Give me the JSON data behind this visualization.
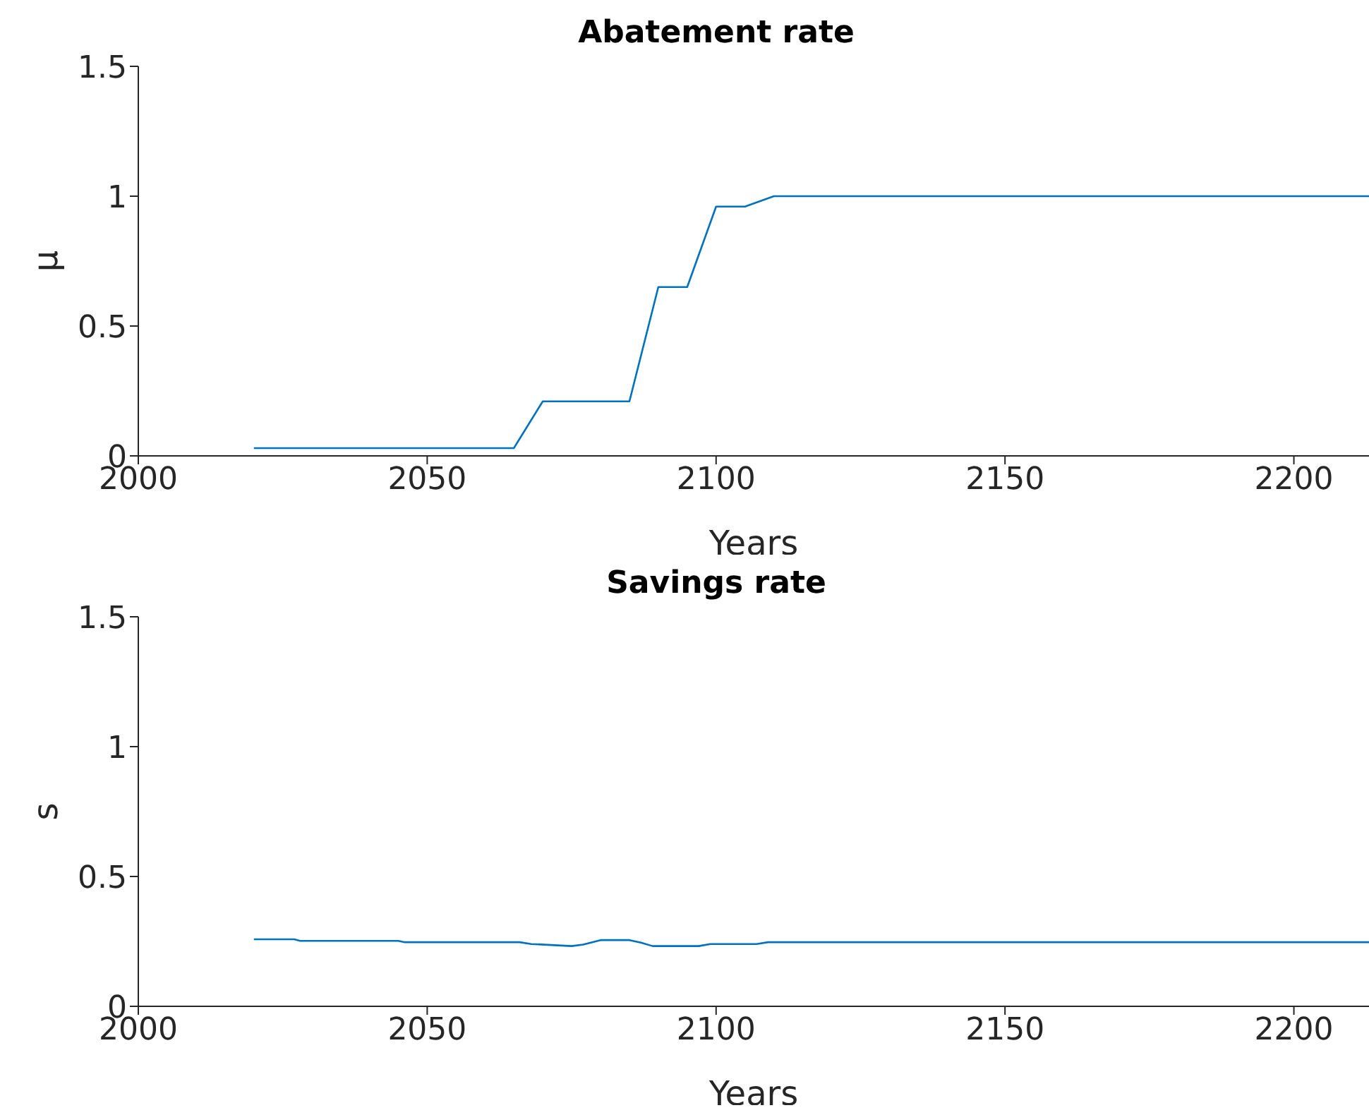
{
  "chart_data": [
    {
      "type": "line",
      "title": "Abatement rate",
      "xlabel": "Years",
      "ylabel": "μ",
      "xlim": [
        2000,
        2213
      ],
      "xticks": [
        2000,
        2050,
        2100,
        2150,
        2200
      ],
      "ylim": [
        0,
        1.5
      ],
      "yticks": [
        0,
        0.5,
        1,
        1.5
      ],
      "grid": false,
      "legend": false,
      "marker": "none",
      "line_style": "solid",
      "series": [
        {
          "color": "#0072bd",
          "x": [
            2020,
            2065,
            2070,
            2085,
            2090,
            2095,
            2100,
            2105,
            2110,
            2213
          ],
          "values": [
            0.03,
            0.03,
            0.21,
            0.21,
            0.65,
            0.65,
            0.96,
            0.96,
            1,
            1
          ]
        }
      ]
    },
    {
      "type": "line",
      "title": "Savings rate",
      "xlabel": "Years",
      "ylabel": "s",
      "xlim": [
        2000,
        2213
      ],
      "xticks": [
        2000,
        2050,
        2100,
        2150,
        2200
      ],
      "ylim": [
        0,
        1.5
      ],
      "yticks": [
        0,
        0.5,
        1,
        1.5
      ],
      "grid": false,
      "legend": false,
      "marker": "none",
      "line_style": "solid",
      "series": [
        {
          "color": "#0072bd",
          "x": [
            2020,
            2027,
            2028,
            2045,
            2046,
            2066,
            2068,
            2075,
            2077,
            2080,
            2085,
            2087,
            2089,
            2097,
            2099,
            2107,
            2109,
            2213
          ],
          "values": [
            0.258,
            0.258,
            0.252,
            0.252,
            0.247,
            0.247,
            0.24,
            0.232,
            0.238,
            0.255,
            0.255,
            0.245,
            0.232,
            0.232,
            0.24,
            0.24,
            0.247,
            0.247
          ]
        }
      ]
    }
  ]
}
